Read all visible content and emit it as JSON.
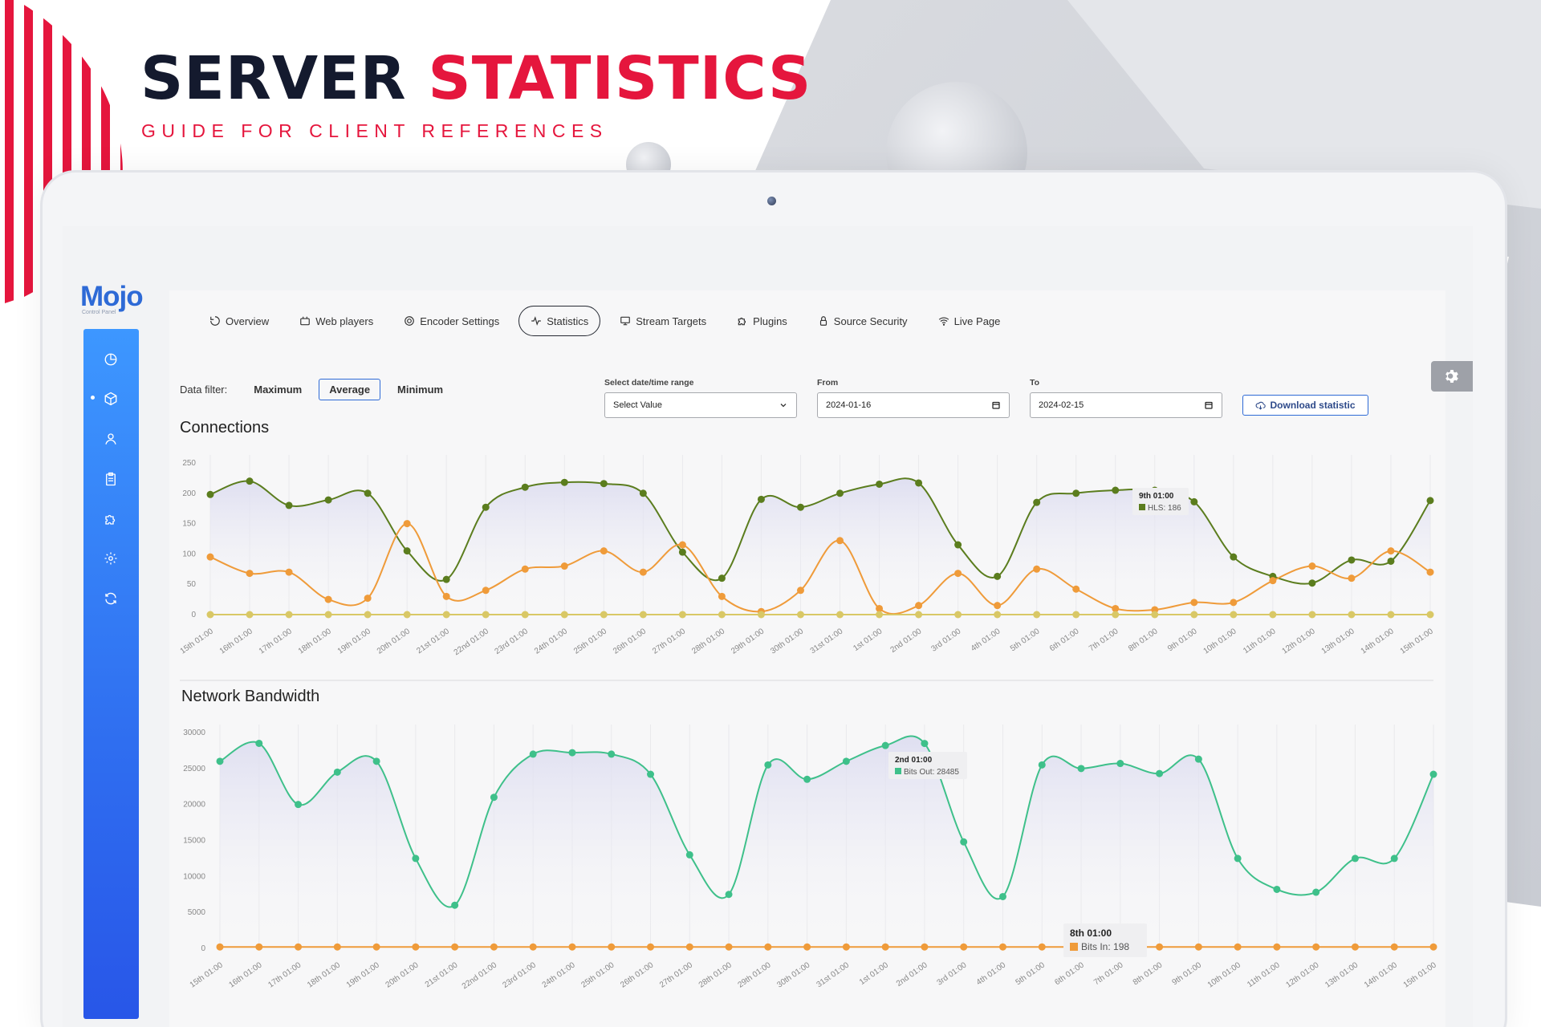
{
  "hero": {
    "title_part1": "SERVER ",
    "title_part2": "STATISTICS",
    "subtitle": "GUIDE FOR CLIENT REFERENCES"
  },
  "app": {
    "logo": "Mojo",
    "logo_sub": "Control Panel"
  },
  "sidebar": {
    "items": [
      {
        "icon": "dashboard-icon"
      },
      {
        "icon": "cube-icon",
        "active": true
      },
      {
        "icon": "user-icon"
      },
      {
        "icon": "clipboard-icon"
      },
      {
        "icon": "puzzle-icon"
      },
      {
        "icon": "gear-icon"
      },
      {
        "icon": "refresh-icon"
      }
    ]
  },
  "tabs": [
    {
      "label": "Overview",
      "icon": "overview-icon"
    },
    {
      "label": "Web players",
      "icon": "players-icon"
    },
    {
      "label": "Encoder Settings",
      "icon": "encoder-icon"
    },
    {
      "label": "Statistics",
      "icon": "statistics-icon",
      "active": true
    },
    {
      "label": "Stream Targets",
      "icon": "monitor-icon"
    },
    {
      "label": "Plugins",
      "icon": "plugin-icon"
    },
    {
      "label": "Source Security",
      "icon": "lock-icon"
    },
    {
      "label": "Live Page",
      "icon": "wifi-icon"
    }
  ],
  "filter": {
    "label": "Data filter:",
    "options": [
      "Maximum",
      "Average",
      "Minimum"
    ],
    "active": "Average"
  },
  "range": {
    "label": "Select date/time range",
    "value": "Select Value"
  },
  "from": {
    "label": "From",
    "value": "2024-01-16"
  },
  "to": {
    "label": "To",
    "value": "2024-02-15"
  },
  "download_label": "Download statistic",
  "chart_data": [
    {
      "type": "line",
      "title": "Connections",
      "categories": [
        "15th 01:00",
        "16th 01:00",
        "17th 01:00",
        "18th 01:00",
        "19th 01:00",
        "20th 01:00",
        "21st 01:00",
        "22nd 01:00",
        "23rd 01:00",
        "24th 01:00",
        "25th 01:00",
        "26th 01:00",
        "27th 01:00",
        "28th 01:00",
        "29th 01:00",
        "30th 01:00",
        "31st 01:00",
        "1st 01:00",
        "2nd 01:00",
        "3rd 01:00",
        "4th 01:00",
        "5th 01:00",
        "6th 01:00",
        "7th 01:00",
        "8th 01:00",
        "9th 01:00",
        "10th 01:00",
        "11th 01:00",
        "12th 01:00",
        "13th 01:00",
        "14th 01:00",
        "15th 01:00"
      ],
      "yticks": [
        0,
        50,
        100,
        150,
        200,
        250
      ],
      "ylim": [
        0,
        250
      ],
      "series": [
        {
          "name": "HLS",
          "color": "#5b7d1e",
          "fill": true,
          "values": [
            198,
            220,
            180,
            189,
            200,
            105,
            58,
            177,
            210,
            218,
            216,
            200,
            103,
            60,
            190,
            177,
            200,
            215,
            217,
            115,
            63,
            185,
            200,
            205,
            205,
            186,
            95,
            63,
            52,
            90,
            88,
            188
          ]
        },
        {
          "name": "",
          "color": "#ef9b3a",
          "fill": false,
          "values": [
            95,
            68,
            70,
            25,
            27,
            150,
            30,
            40,
            75,
            80,
            105,
            70,
            115,
            30,
            5,
            40,
            122,
            10,
            15,
            68,
            15,
            75,
            42,
            10,
            8,
            20,
            20,
            56,
            80,
            60,
            105,
            70
          ]
        },
        {
          "name": "",
          "color": "#d9c866",
          "fill": false,
          "values": [
            0,
            0,
            0,
            0,
            0,
            0,
            0,
            0,
            0,
            0,
            0,
            0,
            0,
            0,
            0,
            0,
            0,
            0,
            0,
            0,
            0,
            0,
            0,
            0,
            0,
            0,
            0,
            0,
            0,
            0,
            0,
            0
          ]
        }
      ],
      "tooltip": {
        "title": "9th 01:00",
        "series": "HLS",
        "value": 186,
        "text": "HLS: 186"
      }
    },
    {
      "type": "line",
      "title": "Network Bandwidth",
      "categories": [
        "15th 01:00",
        "16th 01:00",
        "17th 01:00",
        "18th 01:00",
        "19th 01:00",
        "20th 01:00",
        "21st 01:00",
        "22nd 01:00",
        "23rd 01:00",
        "24th 01:00",
        "25th 01:00",
        "26th 01:00",
        "27th 01:00",
        "28th 01:00",
        "29th 01:00",
        "30th 01:00",
        "31st 01:00",
        "1st 01:00",
        "2nd 01:00",
        "3rd 01:00",
        "4th 01:00",
        "5th 01:00",
        "6th 01:00",
        "7th 01:00",
        "8th 01:00",
        "9th 01:00",
        "10th 01:00",
        "11th 01:00",
        "12th 01:00",
        "13th 01:00",
        "14th 01:00",
        "15th 01:00"
      ],
      "yticks": [
        0,
        5000,
        10000,
        15000,
        20000,
        25000,
        30000
      ],
      "ylim": [
        0,
        30000
      ],
      "series": [
        {
          "name": "Bits Out",
          "color": "#3ec08a",
          "fill": true,
          "values": [
            26000,
            28500,
            20000,
            24500,
            26000,
            12500,
            6000,
            21000,
            27000,
            27200,
            27000,
            24200,
            13000,
            7500,
            25500,
            23500,
            26000,
            28200,
            28485,
            14800,
            7200,
            25500,
            25000,
            25700,
            24300,
            26300,
            12500,
            8200,
            7800,
            12500,
            12500,
            24200
          ]
        },
        {
          "name": "Bits In",
          "color": "#ef9b3a",
          "fill": false,
          "values": [
            198,
            198,
            198,
            198,
            198,
            198,
            198,
            198,
            198,
            198,
            198,
            198,
            198,
            198,
            198,
            198,
            198,
            198,
            198,
            198,
            198,
            198,
            198,
            198,
            198,
            198,
            198,
            198,
            198,
            198,
            198,
            198
          ]
        }
      ],
      "tooltips": [
        {
          "title": "2nd 01:00",
          "series": "Bits Out",
          "value": 28485,
          "text": "Bits Out: 28485"
        },
        {
          "title": "8th 01:00",
          "series": "Bits In",
          "value": 198,
          "text": "Bits In: 198"
        }
      ]
    }
  ]
}
